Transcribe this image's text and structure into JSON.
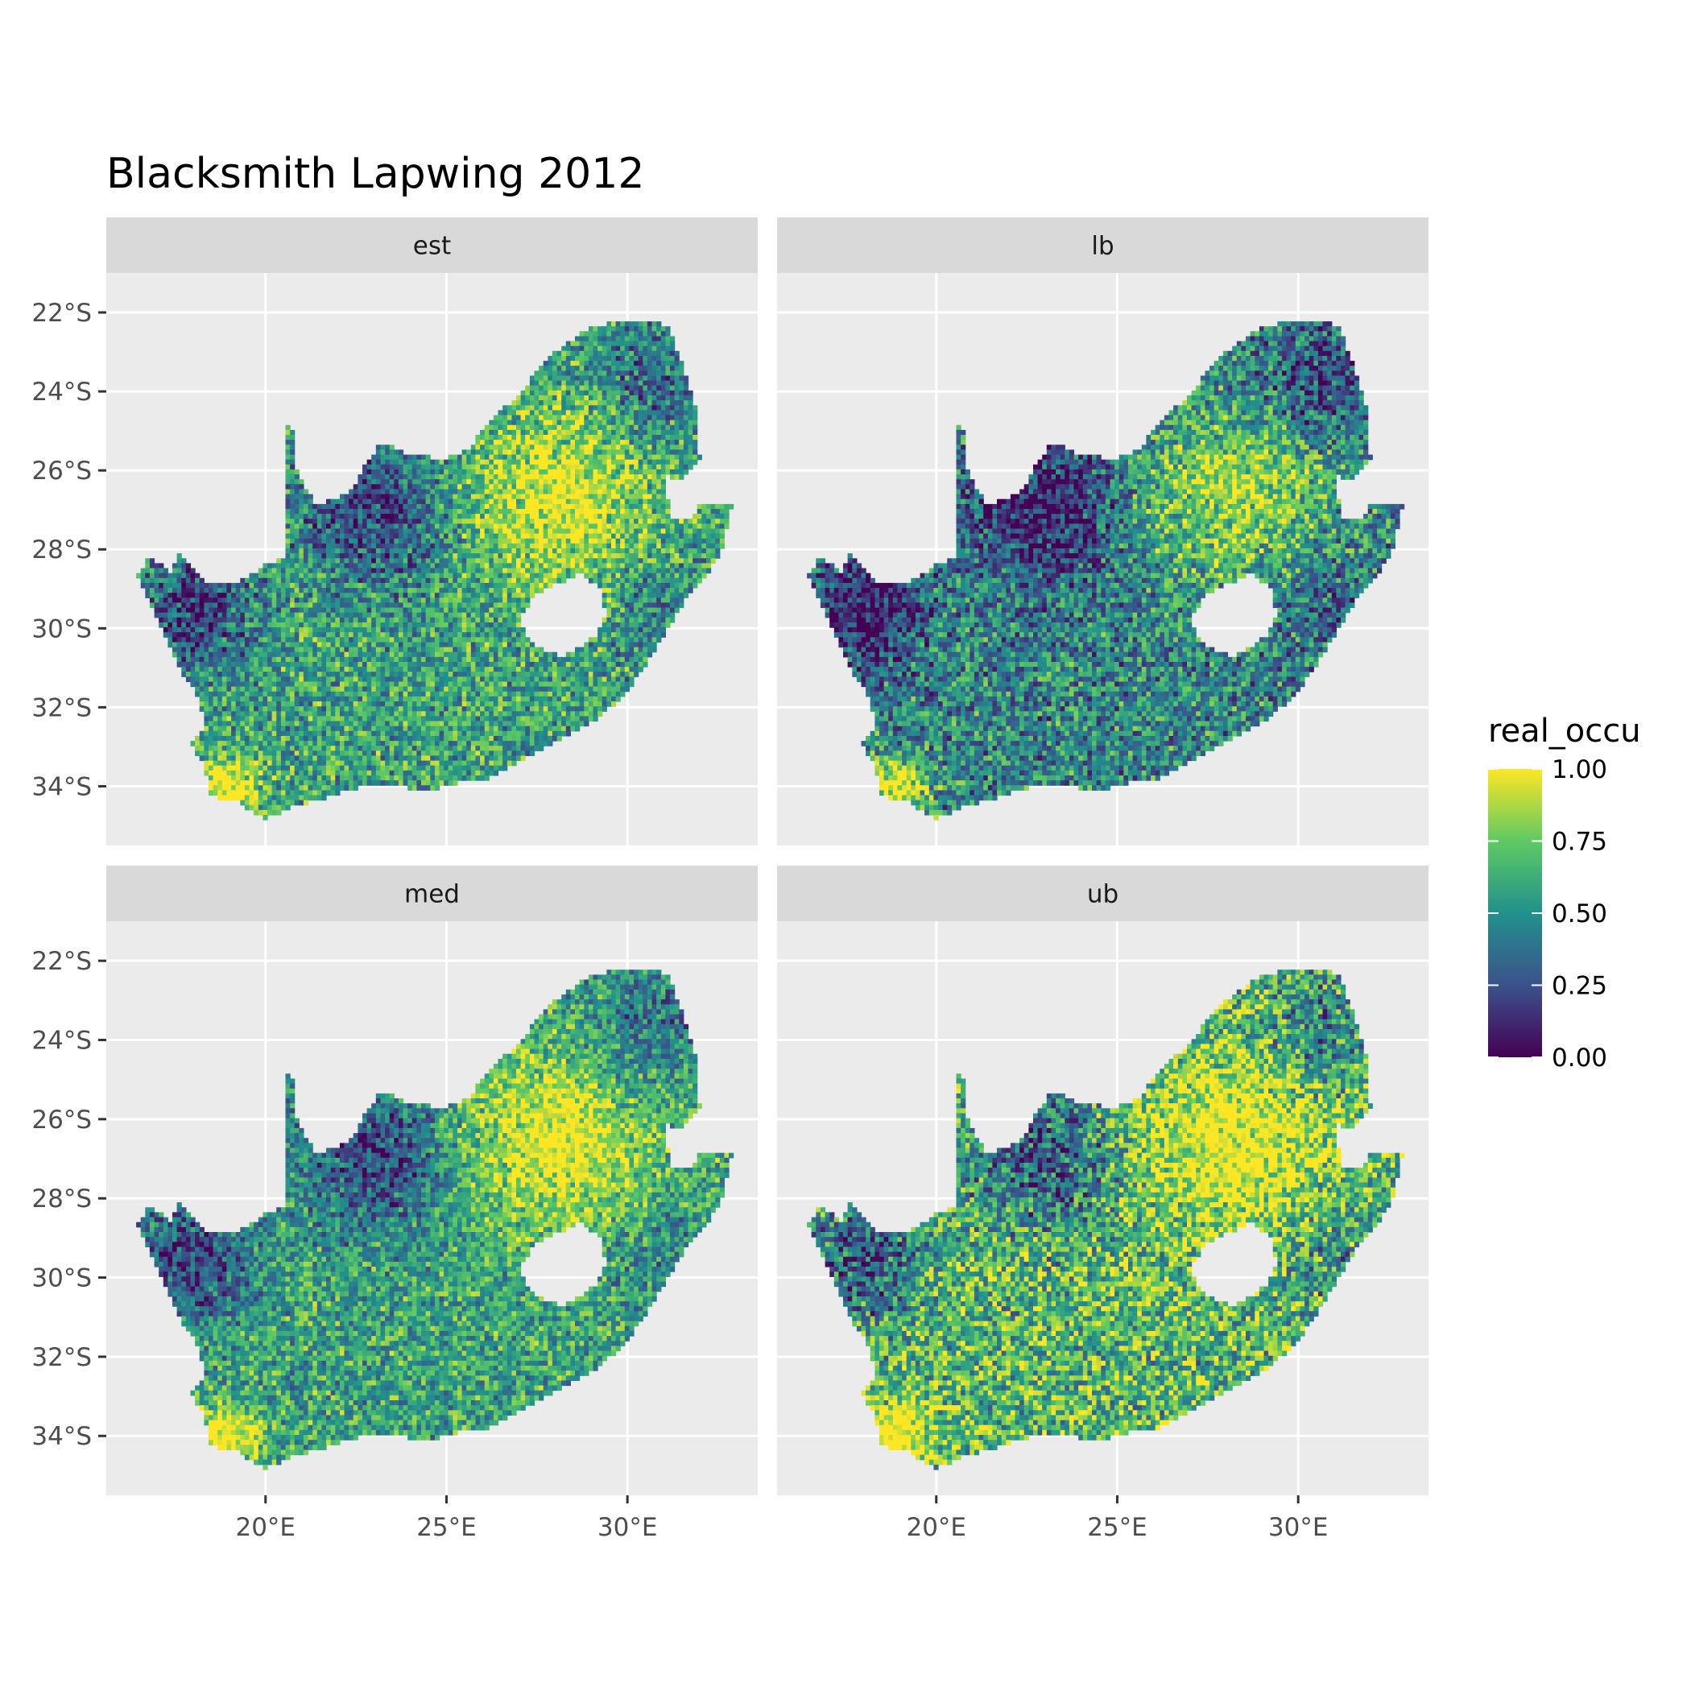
{
  "title": "Blacksmith Lapwing 2012",
  "panels": [
    {
      "label": "est",
      "variant": "est"
    },
    {
      "label": "lb",
      "variant": "lb"
    },
    {
      "label": "med",
      "variant": "med"
    },
    {
      "label": "ub",
      "variant": "ub"
    }
  ],
  "axes": {
    "lat_ticks": [
      "22°S",
      "24°S",
      "26°S",
      "28°S",
      "30°S",
      "32°S",
      "34°S"
    ],
    "lon_ticks": [
      "20°E",
      "25°E",
      "30°E"
    ]
  },
  "legend": {
    "title": "real_occu",
    "ticks": [
      "1.00",
      "0.75",
      "0.50",
      "0.25",
      "0.00"
    ],
    "colors": [
      "#440154",
      "#3b528b",
      "#21918c",
      "#5ec962",
      "#fde725"
    ]
  },
  "colors": {
    "panel_bg": "#ebebeb",
    "strip_bg": "#d9d9d9",
    "grid": "#ffffff"
  }
}
